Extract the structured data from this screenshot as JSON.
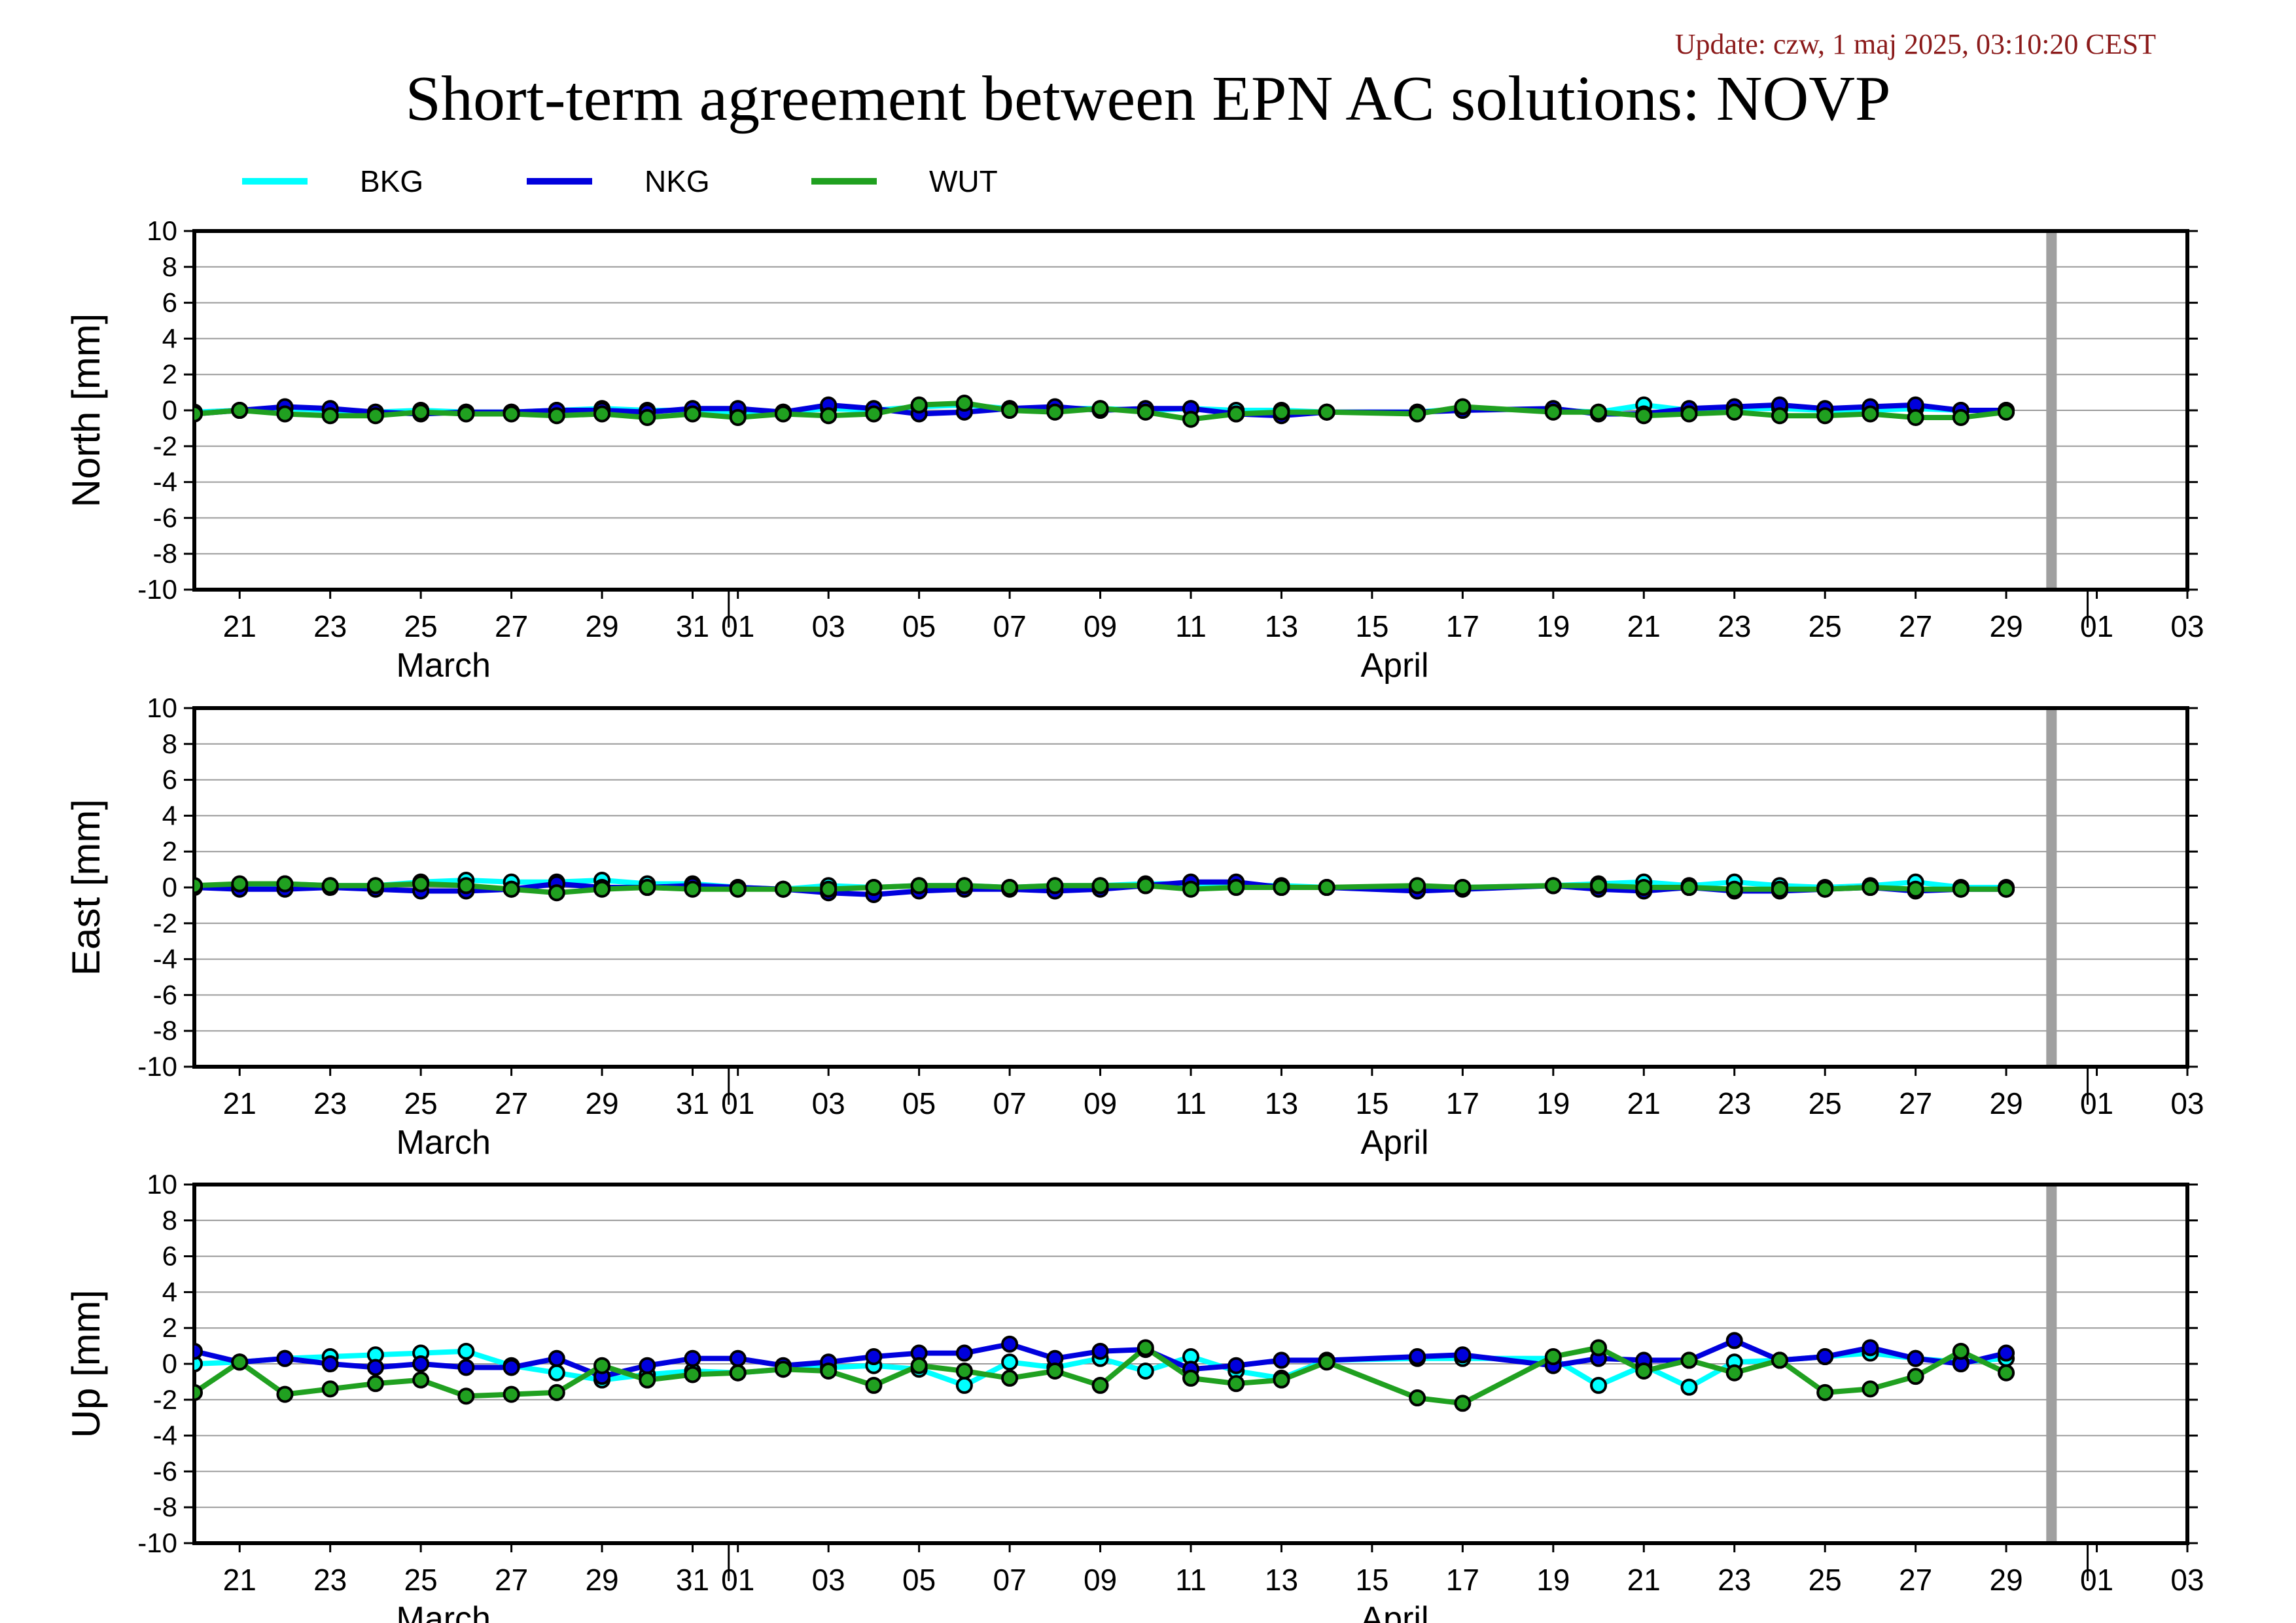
{
  "update_text": "Update: czw, 1 maj 2025, 03:10:20 CEST",
  "title": "Short-term agreement between EPN AC solutions: NOVP",
  "colors": {
    "BKG": "#00ffff",
    "NKG": "#0000dd",
    "WUT": "#20a020",
    "gray_bar": "#a0a0a0"
  },
  "chart_data": {
    "type": "line",
    "x_axis": {
      "range": [
        "2025-03-20",
        "2025-05-03"
      ],
      "tick_labels": [
        "21",
        "23",
        "25",
        "27",
        "29",
        "31",
        "01",
        "03",
        "05",
        "07",
        "09",
        "11",
        "13",
        "15",
        "17",
        "19",
        "21",
        "23",
        "25",
        "27",
        "29",
        "01",
        "03"
      ],
      "tick_dates": [
        "2025-03-21",
        "2025-03-23",
        "2025-03-25",
        "2025-03-27",
        "2025-03-29",
        "2025-03-31",
        "2025-04-01",
        "2025-04-03",
        "2025-04-05",
        "2025-04-07",
        "2025-04-09",
        "2025-04-11",
        "2025-04-13",
        "2025-04-15",
        "2025-04-17",
        "2025-04-19",
        "2025-04-21",
        "2025-04-23",
        "2025-04-25",
        "2025-04-27",
        "2025-04-29",
        "2025-05-01",
        "2025-05-03"
      ],
      "month_labels": [
        {
          "label": "March",
          "date": "2025-03-25.5"
        },
        {
          "label": "April",
          "date": "2025-04-15.5"
        }
      ],
      "month_boundaries": [
        "2025-04-01",
        "2025-05-01"
      ],
      "current_date_marker": "2025-04-30"
    },
    "legend": [
      "BKG",
      "NKG",
      "WUT"
    ],
    "panels": [
      {
        "ylabel": "North [mm]",
        "ylim": [
          -10,
          10
        ],
        "yticks": [
          10,
          8,
          6,
          4,
          2,
          0,
          -2,
          -4,
          -6,
          -8,
          -10
        ],
        "x": [
          "2025-03-20",
          "2025-03-21",
          "2025-03-22",
          "2025-03-23",
          "2025-03-24",
          "2025-03-25",
          "2025-03-26",
          "2025-03-27",
          "2025-03-28",
          "2025-03-29",
          "2025-03-30",
          "2025-03-31",
          "2025-04-01",
          "2025-04-02",
          "2025-04-03",
          "2025-04-04",
          "2025-04-05",
          "2025-04-06",
          "2025-04-07",
          "2025-04-08",
          "2025-04-09",
          "2025-04-10",
          "2025-04-11",
          "2025-04-12",
          "2025-04-13",
          "2025-04-14",
          "2025-04-16",
          "2025-04-17",
          "2025-04-19",
          "2025-04-20",
          "2025-04-21",
          "2025-04-22",
          "2025-04-23",
          "2025-04-24",
          "2025-04-25",
          "2025-04-26",
          "2025-04-27",
          "2025-04-28",
          "2025-04-29"
        ],
        "series": [
          {
            "name": "BKG",
            "values": [
              -0.1,
              0.0,
              0.1,
              0.0,
              -0.1,
              0.0,
              -0.1,
              -0.1,
              0.0,
              0.1,
              0.0,
              0.0,
              -0.1,
              -0.1,
              0.1,
              0.0,
              0.2,
              0.3,
              0.1,
              0.1,
              0.1,
              0.0,
              0.1,
              0.0,
              0.0,
              -0.1,
              -0.1,
              0.1,
              0.0,
              -0.1,
              0.3,
              0.0,
              0.1,
              0.1,
              0.0,
              0.0,
              0.1,
              0.0,
              0.0
            ]
          },
          {
            "name": "NKG",
            "values": [
              -0.2,
              0.0,
              0.2,
              0.1,
              -0.1,
              -0.2,
              -0.1,
              -0.1,
              0.0,
              0.0,
              -0.1,
              0.1,
              0.1,
              -0.1,
              0.3,
              0.1,
              -0.2,
              -0.1,
              0.1,
              0.2,
              0.0,
              0.1,
              0.1,
              -0.2,
              -0.3,
              -0.1,
              -0.1,
              0.0,
              0.1,
              -0.2,
              -0.2,
              0.1,
              0.2,
              0.3,
              0.1,
              0.2,
              0.3,
              0.0,
              0.0
            ]
          },
          {
            "name": "WUT",
            "values": [
              -0.2,
              0.0,
              -0.2,
              -0.3,
              -0.3,
              -0.1,
              -0.2,
              -0.2,
              -0.3,
              -0.2,
              -0.4,
              -0.2,
              -0.4,
              -0.2,
              -0.3,
              -0.2,
              0.3,
              0.4,
              0.0,
              -0.1,
              0.1,
              -0.1,
              -0.5,
              -0.2,
              -0.1,
              -0.1,
              -0.2,
              0.2,
              -0.1,
              -0.1,
              -0.3,
              -0.2,
              -0.1,
              -0.3,
              -0.3,
              -0.2,
              -0.4,
              -0.4,
              -0.1
            ]
          }
        ]
      },
      {
        "ylabel": "East [mm]",
        "ylim": [
          -10,
          10
        ],
        "yticks": [
          10,
          8,
          6,
          4,
          2,
          0,
          -2,
          -4,
          -6,
          -8,
          -10
        ],
        "x": [
          "2025-03-20",
          "2025-03-21",
          "2025-03-22",
          "2025-03-23",
          "2025-03-24",
          "2025-03-25",
          "2025-03-26",
          "2025-03-27",
          "2025-03-28",
          "2025-03-29",
          "2025-03-30",
          "2025-03-31",
          "2025-04-01",
          "2025-04-02",
          "2025-04-03",
          "2025-04-04",
          "2025-04-05",
          "2025-04-06",
          "2025-04-07",
          "2025-04-08",
          "2025-04-09",
          "2025-04-10",
          "2025-04-11",
          "2025-04-12",
          "2025-04-13",
          "2025-04-14",
          "2025-04-16",
          "2025-04-17",
          "2025-04-19",
          "2025-04-20",
          "2025-04-21",
          "2025-04-22",
          "2025-04-23",
          "2025-04-24",
          "2025-04-25",
          "2025-04-26",
          "2025-04-27",
          "2025-04-28",
          "2025-04-29"
        ],
        "series": [
          {
            "name": "BKG",
            "values": [
              0.1,
              0.1,
              0.2,
              0.1,
              0.1,
              0.3,
              0.4,
              0.3,
              0.3,
              0.4,
              0.2,
              0.2,
              0.0,
              -0.1,
              0.1,
              0.0,
              0.1,
              0.1,
              0.0,
              0.1,
              0.1,
              0.2,
              0.2,
              0.1,
              0.1,
              0.0,
              0.0,
              0.0,
              0.1,
              0.2,
              0.3,
              0.1,
              0.3,
              0.1,
              0.0,
              0.1,
              0.3,
              0.0,
              0.0
            ]
          },
          {
            "name": "NKG",
            "values": [
              0.0,
              -0.1,
              -0.1,
              0.0,
              -0.1,
              -0.2,
              -0.2,
              -0.1,
              0.2,
              0.0,
              0.0,
              0.1,
              0.0,
              -0.1,
              -0.3,
              -0.4,
              -0.2,
              -0.1,
              -0.1,
              -0.2,
              -0.1,
              0.1,
              0.3,
              0.3,
              0.0,
              0.0,
              -0.2,
              -0.1,
              0.1,
              -0.1,
              -0.2,
              0.0,
              -0.2,
              -0.2,
              -0.1,
              0.0,
              -0.2,
              -0.1,
              -0.1
            ]
          },
          {
            "name": "WUT",
            "values": [
              0.1,
              0.2,
              0.2,
              0.1,
              0.1,
              0.2,
              0.1,
              -0.1,
              -0.3,
              -0.1,
              0.0,
              -0.1,
              -0.1,
              -0.1,
              -0.1,
              0.0,
              0.1,
              0.1,
              0.0,
              0.1,
              0.1,
              0.1,
              -0.1,
              0.0,
              0.0,
              0.0,
              0.1,
              0.0,
              0.1,
              0.1,
              0.0,
              0.0,
              -0.1,
              -0.1,
              -0.1,
              0.0,
              -0.1,
              -0.1,
              -0.1
            ]
          }
        ]
      },
      {
        "ylabel": "Up [mm]",
        "ylim": [
          -10,
          10
        ],
        "yticks": [
          10,
          8,
          6,
          4,
          2,
          0,
          -2,
          -4,
          -6,
          -8,
          -10
        ],
        "x": [
          "2025-03-20",
          "2025-03-21",
          "2025-03-22",
          "2025-03-23",
          "2025-03-24",
          "2025-03-25",
          "2025-03-26",
          "2025-03-27",
          "2025-03-28",
          "2025-03-29",
          "2025-03-30",
          "2025-03-31",
          "2025-04-01",
          "2025-04-02",
          "2025-04-03",
          "2025-04-04",
          "2025-04-05",
          "2025-04-06",
          "2025-04-07",
          "2025-04-08",
          "2025-04-09",
          "2025-04-10",
          "2025-04-11",
          "2025-04-12",
          "2025-04-13",
          "2025-04-14",
          "2025-04-16",
          "2025-04-17",
          "2025-04-19",
          "2025-04-20",
          "2025-04-21",
          "2025-04-22",
          "2025-04-23",
          "2025-04-24",
          "2025-04-25",
          "2025-04-26",
          "2025-04-27",
          "2025-04-28",
          "2025-04-29"
        ],
        "series": [
          {
            "name": "BKG",
            "values": [
              0.0,
              0.1,
              0.3,
              0.4,
              0.5,
              0.6,
              0.7,
              -0.1,
              -0.5,
              -0.9,
              -0.6,
              -0.4,
              -0.5,
              -0.3,
              -0.2,
              -0.1,
              -0.3,
              -1.2,
              0.1,
              -0.2,
              0.3,
              -0.4,
              0.4,
              -0.4,
              -0.8,
              0.2,
              0.3,
              0.3,
              0.3,
              -1.2,
              -0.1,
              -1.3,
              0.1,
              0.2,
              0.4,
              0.6,
              0.3,
              0.1,
              0.3
            ]
          },
          {
            "name": "NKG",
            "values": [
              0.7,
              0.1,
              0.3,
              0.0,
              -0.2,
              0.0,
              -0.2,
              -0.2,
              0.3,
              -0.7,
              -0.1,
              0.3,
              0.3,
              -0.1,
              0.1,
              0.4,
              0.6,
              0.6,
              1.1,
              0.3,
              0.7,
              0.8,
              -0.3,
              -0.1,
              0.2,
              0.2,
              0.4,
              0.5,
              -0.1,
              0.3,
              0.2,
              0.2,
              1.3,
              0.2,
              0.4,
              0.9,
              0.3,
              0.0,
              0.6
            ]
          },
          {
            "name": "WUT",
            "values": [
              -1.6,
              0.1,
              -1.7,
              -1.4,
              -1.1,
              -0.9,
              -1.8,
              -1.7,
              -1.6,
              -0.1,
              -0.9,
              -0.6,
              -0.5,
              -0.3,
              -0.4,
              -1.2,
              -0.1,
              -0.4,
              -0.8,
              -0.4,
              -1.2,
              0.9,
              -0.8,
              -1.1,
              -0.9,
              0.1,
              -1.9,
              -2.2,
              0.4,
              0.9,
              -0.4,
              0.2,
              -0.5,
              0.2,
              -1.6,
              -1.4,
              -0.7,
              0.7,
              -0.5
            ]
          }
        ]
      }
    ]
  }
}
